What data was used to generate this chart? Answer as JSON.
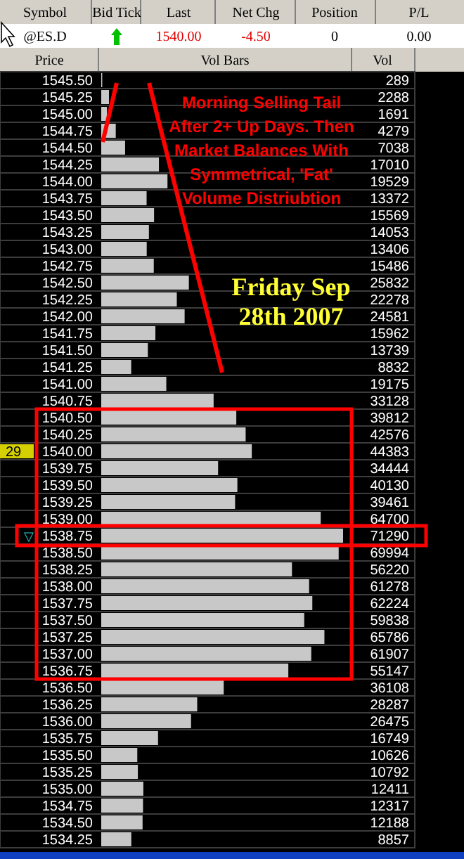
{
  "chart_data": {
    "type": "bar",
    "orientation": "horizontal",
    "ylabel": "Price",
    "xlabel": "Vol Bars",
    "color": "#c8c8c8",
    "data_labels": true,
    "categories": [
      "1545.50",
      "1545.25",
      "1545.00",
      "1544.75",
      "1544.50",
      "1544.25",
      "1544.00",
      "1543.75",
      "1543.50",
      "1543.25",
      "1543.00",
      "1542.75",
      "1542.50",
      "1542.25",
      "1542.00",
      "1541.75",
      "1541.50",
      "1541.25",
      "1541.00",
      "1540.75",
      "1540.50",
      "1540.25",
      "1540.00",
      "1539.75",
      "1539.50",
      "1539.25",
      "1539.00",
      "1538.75",
      "1538.50",
      "1538.25",
      "1538.00",
      "1537.75",
      "1537.50",
      "1537.25",
      "1537.00",
      "1536.75",
      "1536.50",
      "1536.25",
      "1536.00",
      "1535.75",
      "1535.50",
      "1535.25",
      "1535.00",
      "1534.75",
      "1534.50",
      "1534.25"
    ],
    "values": [
      289,
      2288,
      1691,
      4279,
      7038,
      17010,
      19529,
      13372,
      15569,
      14053,
      13406,
      15486,
      25832,
      22278,
      24581,
      15962,
      13739,
      8832,
      19175,
      33128,
      39812,
      42576,
      44383,
      34444,
      40130,
      39461,
      64700,
      71290,
      69994,
      56220,
      61278,
      62224,
      59838,
      65786,
      61907,
      55147,
      36108,
      28287,
      26475,
      16749,
      10626,
      10792,
      12411,
      12317,
      12188,
      8857
    ],
    "annotations": [
      "Symbol",
      "Bid Tick",
      "Last",
      "Net Chg",
      "Position",
      "P/L",
      "@ES.D",
      "1540.00",
      "-4.50",
      "0",
      "0.00",
      "Vol",
      "Morning Selling Tail After 2+ Up Days.  Then Market Balances With Symmetrical, 'Fat' Volume Distriubtion",
      "Friday Sep 28th 2007",
      "29",
      "▽"
    ]
  }
}
